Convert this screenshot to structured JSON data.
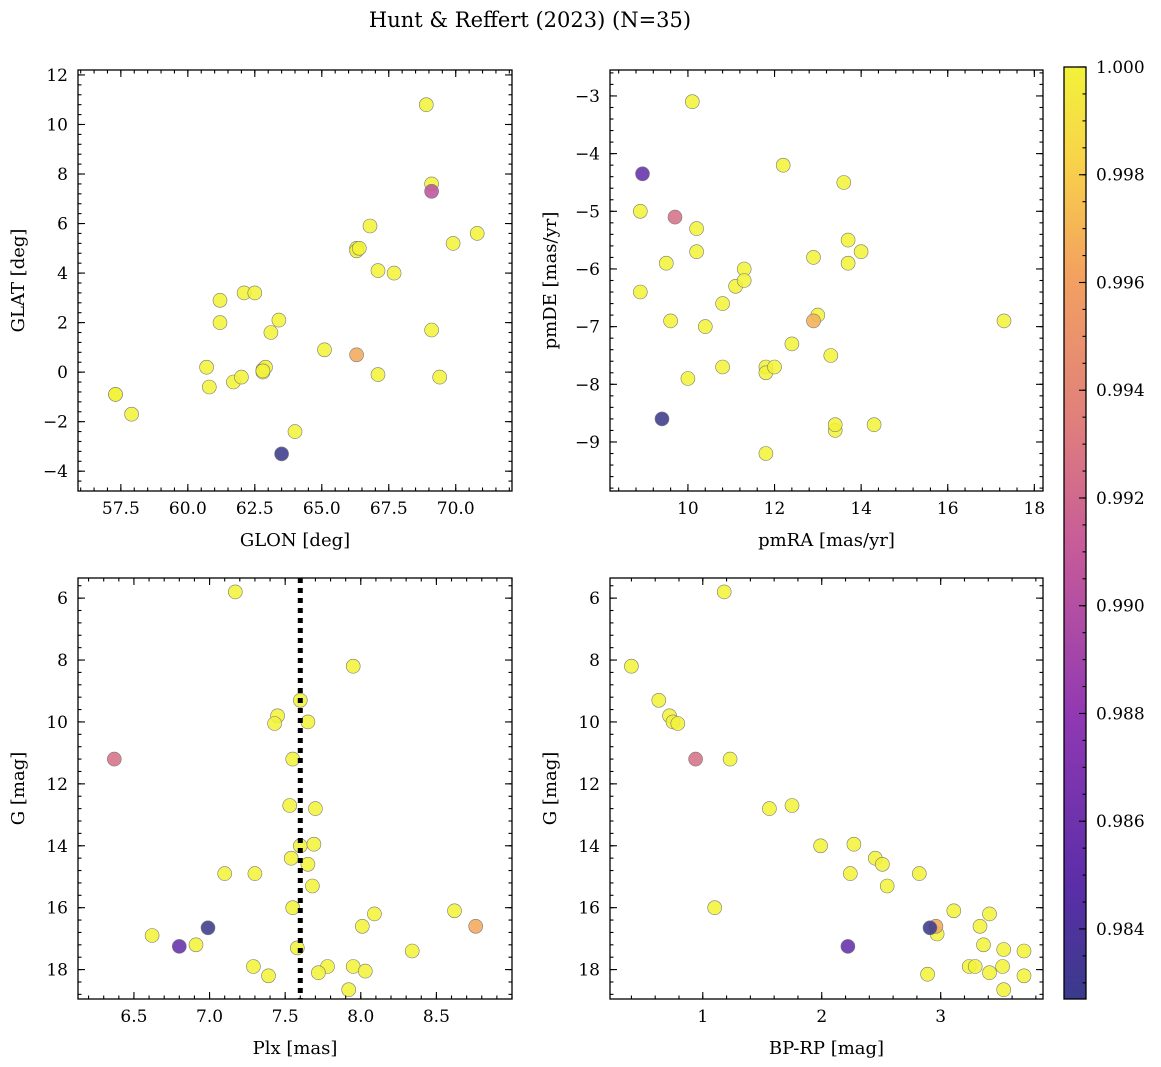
{
  "figure": {
    "title": "Hunt & Reffert (2023) (N=35)"
  },
  "colorbar": {
    "vmin": 0.9827,
    "vmax": 1.0,
    "ticks": [
      0.984,
      0.986,
      0.988,
      0.99,
      0.992,
      0.994,
      0.996,
      0.998,
      1.0
    ],
    "tick_labels": [
      "0.984",
      "0.986",
      "0.988",
      "0.990",
      "0.992",
      "0.994",
      "0.996",
      "0.998",
      "1.000"
    ],
    "colormap": "plasma"
  },
  "chart_data": [
    {
      "type": "scatter",
      "id": "glon-glat",
      "xlabel": "GLON [deg]",
      "ylabel": "GLAT [deg]",
      "xlim": [
        55.9,
        72.1
      ],
      "ylim": [
        -4.8,
        12.2
      ],
      "y_inverted": false,
      "xticks": [
        57.5,
        60.0,
        62.5,
        65.0,
        67.5,
        70.0
      ],
      "xtick_labels": [
        "57.5",
        "60.0",
        "62.5",
        "65.0",
        "67.5",
        "70.0"
      ],
      "yticks": [
        -4,
        -2,
        0,
        2,
        4,
        6,
        8,
        10,
        12
      ],
      "ytick_labels": [
        "−4",
        "−2",
        "0",
        "2",
        "4",
        "6",
        "8",
        "10",
        "12"
      ],
      "points": [
        [
          57.3,
          -0.9,
          1.0
        ],
        [
          57.9,
          -1.7,
          1.0
        ],
        [
          60.7,
          0.2,
          1.0
        ],
        [
          60.8,
          -0.6,
          1.0
        ],
        [
          61.2,
          2.9,
          1.0
        ],
        [
          61.2,
          2.0,
          1.0
        ],
        [
          61.7,
          -0.4,
          1.0
        ],
        [
          62.0,
          -0.2,
          1.0
        ],
        [
          62.1,
          3.2,
          1.0
        ],
        [
          62.5,
          3.2,
          1.0
        ],
        [
          62.8,
          0.1,
          1.0
        ],
        [
          62.8,
          0.0,
          1.0
        ],
        [
          62.9,
          0.2,
          1.0
        ],
        [
          63.1,
          1.6,
          1.0
        ],
        [
          63.4,
          2.1,
          1.0
        ],
        [
          64.0,
          -2.4,
          1.0
        ],
        [
          65.1,
          0.9,
          1.0
        ],
        [
          66.3,
          5.0,
          1.0
        ],
        [
          66.3,
          4.9,
          1.0
        ],
        [
          66.8,
          5.9,
          1.0
        ],
        [
          67.1,
          4.1,
          1.0
        ],
        [
          67.1,
          -0.1,
          1.0
        ],
        [
          67.7,
          4.0,
          1.0
        ],
        [
          68.9,
          10.8,
          1.0
        ],
        [
          69.1,
          7.6,
          1.0
        ],
        [
          69.1,
          1.7,
          1.0
        ],
        [
          69.4,
          -0.2,
          1.0
        ],
        [
          69.9,
          5.2,
          1.0
        ],
        [
          70.8,
          5.6,
          1.0
        ],
        [
          66.3,
          0.7,
          0.9965
        ],
        [
          69.1,
          7.3,
          0.9905
        ],
        [
          63.5,
          -3.3,
          0.9828
        ],
        [
          57.3,
          -0.9,
          1.0
        ],
        [
          62.8,
          0.05,
          1.0
        ],
        [
          66.4,
          5.0,
          1.0
        ]
      ]
    },
    {
      "type": "scatter",
      "id": "pm",
      "xlabel": "pmRA [mas/yr]",
      "ylabel": "pmDE [mas/yr]",
      "xlim": [
        8.2,
        18.2
      ],
      "ylim": [
        -9.85,
        -2.55
      ],
      "y_inverted": false,
      "xticks": [
        10,
        12,
        14,
        16,
        18
      ],
      "xtick_labels": [
        "10",
        "12",
        "14",
        "16",
        "18"
      ],
      "yticks": [
        -9,
        -8,
        -7,
        -6,
        -5,
        -4,
        -3
      ],
      "ytick_labels": [
        "−9",
        "−8",
        "−7",
        "−6",
        "−5",
        "−4",
        "−3"
      ],
      "points": [
        [
          10.1,
          -3.1,
          1.0
        ],
        [
          12.2,
          -4.2,
          1.0
        ],
        [
          13.6,
          -4.5,
          1.0
        ],
        [
          8.9,
          -5.0,
          1.0
        ],
        [
          10.2,
          -5.3,
          1.0
        ],
        [
          13.7,
          -5.5,
          1.0
        ],
        [
          10.2,
          -5.7,
          1.0
        ],
        [
          14.0,
          -5.7,
          1.0
        ],
        [
          12.9,
          -5.8,
          1.0
        ],
        [
          13.7,
          -5.9,
          1.0
        ],
        [
          9.5,
          -5.9,
          1.0
        ],
        [
          11.3,
          -6.0,
          1.0
        ],
        [
          11.1,
          -6.3,
          1.0
        ],
        [
          11.3,
          -6.2,
          1.0
        ],
        [
          8.9,
          -6.4,
          1.0
        ],
        [
          10.8,
          -6.6,
          1.0
        ],
        [
          9.6,
          -6.9,
          1.0
        ],
        [
          10.4,
          -7.0,
          1.0
        ],
        [
          13.0,
          -6.8,
          1.0
        ],
        [
          17.3,
          -6.9,
          1.0
        ],
        [
          12.4,
          -7.3,
          1.0
        ],
        [
          13.3,
          -7.5,
          1.0
        ],
        [
          10.8,
          -7.7,
          1.0
        ],
        [
          11.8,
          -7.7,
          1.0
        ],
        [
          11.8,
          -7.8,
          1.0
        ],
        [
          12.0,
          -7.7,
          1.0
        ],
        [
          10.0,
          -7.9,
          1.0
        ],
        [
          13.4,
          -8.8,
          1.0
        ],
        [
          13.4,
          -8.7,
          1.0
        ],
        [
          14.3,
          -8.7,
          1.0
        ],
        [
          11.8,
          -9.2,
          1.0
        ],
        [
          12.9,
          -6.9,
          0.9968
        ],
        [
          9.7,
          -5.1,
          0.9925
        ],
        [
          8.95,
          -4.35,
          0.9853
        ],
        [
          9.4,
          -8.6,
          0.9828
        ]
      ]
    },
    {
      "type": "scatter",
      "id": "plx-g",
      "xlabel": "Plx [mas]",
      "ylabel": "G [mag]",
      "xlim": [
        6.13,
        9.0
      ],
      "ylim": [
        5.35,
        18.95
      ],
      "y_inverted": true,
      "xticks": [
        6.5,
        7.0,
        7.5,
        8.0,
        8.5
      ],
      "xtick_labels": [
        "6.5",
        "7.0",
        "7.5",
        "8.0",
        "8.5"
      ],
      "yticks": [
        6,
        8,
        10,
        12,
        14,
        16,
        18
      ],
      "ytick_labels": [
        "6",
        "8",
        "10",
        "12",
        "14",
        "16",
        "18"
      ],
      "vline": {
        "x": 7.6,
        "style": "dotted"
      },
      "points": [
        [
          7.17,
          5.8,
          1.0
        ],
        [
          7.95,
          8.2,
          1.0
        ],
        [
          7.6,
          9.3,
          1.0
        ],
        [
          7.45,
          9.8,
          1.0
        ],
        [
          7.43,
          10.05,
          1.0
        ],
        [
          7.65,
          10.0,
          1.0
        ],
        [
          7.55,
          11.2,
          1.0
        ],
        [
          7.53,
          12.7,
          1.0
        ],
        [
          7.7,
          12.8,
          1.0
        ],
        [
          7.6,
          14.0,
          1.0
        ],
        [
          7.69,
          13.95,
          1.0
        ],
        [
          7.54,
          14.4,
          1.0
        ],
        [
          7.65,
          14.6,
          1.0
        ],
        [
          7.1,
          14.9,
          1.0
        ],
        [
          7.3,
          14.9,
          1.0
        ],
        [
          7.68,
          15.3,
          1.0
        ],
        [
          7.55,
          16.0,
          1.0
        ],
        [
          8.09,
          16.2,
          1.0
        ],
        [
          8.62,
          16.1,
          1.0
        ],
        [
          8.01,
          16.6,
          1.0
        ],
        [
          6.62,
          16.9,
          1.0
        ],
        [
          6.91,
          17.2,
          1.0
        ],
        [
          7.58,
          17.3,
          1.0
        ],
        [
          8.34,
          17.4,
          1.0
        ],
        [
          7.29,
          17.9,
          1.0
        ],
        [
          7.78,
          17.9,
          1.0
        ],
        [
          7.95,
          17.9,
          1.0
        ],
        [
          7.39,
          18.2,
          1.0
        ],
        [
          7.72,
          18.1,
          1.0
        ],
        [
          8.03,
          18.05,
          1.0
        ],
        [
          7.92,
          18.65,
          1.0
        ],
        [
          8.76,
          16.6,
          0.9965
        ],
        [
          6.37,
          11.2,
          0.9925
        ],
        [
          6.8,
          17.25,
          0.9853
        ],
        [
          6.99,
          16.65,
          0.9828
        ]
      ]
    },
    {
      "type": "scatter",
      "id": "cmd",
      "xlabel": "BP-RP [mag]",
      "ylabel": "G [mag]",
      "xlim": [
        0.22,
        3.86
      ],
      "ylim": [
        5.35,
        18.95
      ],
      "y_inverted": true,
      "xticks": [
        1,
        2,
        3
      ],
      "xtick_labels": [
        "1",
        "2",
        "3"
      ],
      "yticks": [
        6,
        8,
        10,
        12,
        14,
        16,
        18
      ],
      "ytick_labels": [
        "6",
        "8",
        "10",
        "12",
        "14",
        "16",
        "18"
      ],
      "points": [
        [
          1.18,
          5.8,
          1.0
        ],
        [
          0.4,
          8.2,
          1.0
        ],
        [
          0.63,
          9.3,
          1.0
        ],
        [
          0.72,
          9.8,
          1.0
        ],
        [
          0.75,
          10.0,
          1.0
        ],
        [
          0.79,
          10.05,
          1.0
        ],
        [
          1.23,
          11.2,
          1.0
        ],
        [
          1.56,
          12.8,
          1.0
        ],
        [
          1.75,
          12.7,
          1.0
        ],
        [
          1.99,
          14.0,
          1.0
        ],
        [
          2.27,
          13.95,
          1.0
        ],
        [
          2.45,
          14.4,
          1.0
        ],
        [
          2.51,
          14.6,
          1.0
        ],
        [
          2.24,
          14.9,
          1.0
        ],
        [
          2.82,
          14.9,
          1.0
        ],
        [
          2.55,
          15.3,
          1.0
        ],
        [
          1.1,
          16.0,
          1.0
        ],
        [
          3.11,
          16.1,
          1.0
        ],
        [
          3.41,
          16.2,
          1.0
        ],
        [
          3.33,
          16.6,
          1.0
        ],
        [
          2.97,
          16.85,
          1.0
        ],
        [
          3.36,
          17.2,
          1.0
        ],
        [
          3.53,
          17.35,
          1.0
        ],
        [
          3.7,
          17.4,
          1.0
        ],
        [
          3.24,
          17.9,
          1.0
        ],
        [
          3.29,
          17.9,
          1.0
        ],
        [
          3.52,
          17.9,
          1.0
        ],
        [
          3.41,
          18.1,
          1.0
        ],
        [
          2.89,
          18.15,
          1.0
        ],
        [
          3.7,
          18.2,
          1.0
        ],
        [
          3.53,
          18.65,
          1.0
        ],
        [
          2.96,
          16.6,
          0.9965
        ],
        [
          0.94,
          11.2,
          0.9925
        ],
        [
          2.22,
          17.25,
          0.9853
        ],
        [
          2.91,
          16.65,
          0.9828
        ]
      ]
    }
  ]
}
